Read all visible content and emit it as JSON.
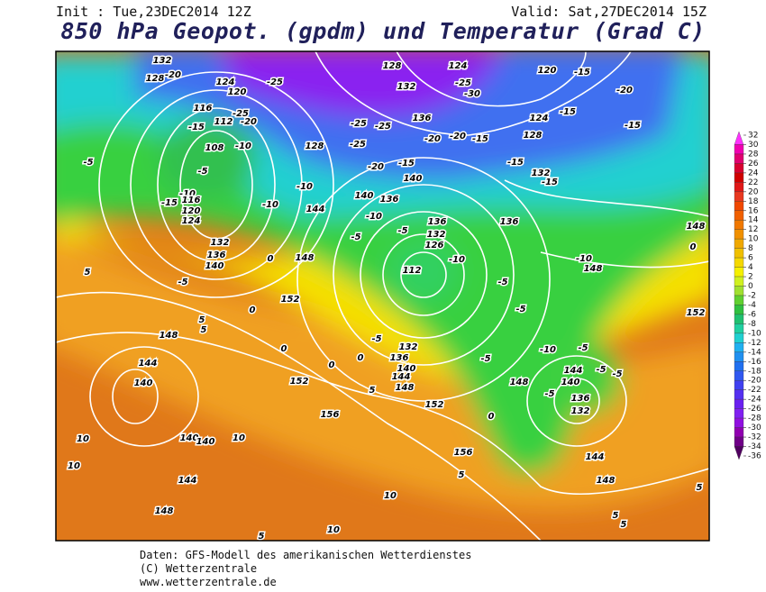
{
  "header": {
    "init": "Init : Tue,23DEC2014 12Z",
    "valid": "Valid: Sat,27DEC2014 15Z",
    "title": "850 hPa Geopot. (gpdm) und Temperatur (Grad C)"
  },
  "map_labels": [
    "132",
    "128",
    "-20",
    "124",
    "120",
    "-25",
    "116",
    "-25",
    "112",
    "-20",
    "-15",
    "108",
    "-10",
    "-5",
    "-5",
    "-15",
    "-10",
    "116",
    "120",
    "124",
    "132",
    "136",
    "140",
    "-5",
    "0",
    "5",
    "148",
    "152",
    "0",
    "0",
    "5",
    "5",
    "148",
    "144",
    "140",
    "152",
    "156",
    "140",
    "140",
    "10",
    "10",
    "10",
    "144",
    "148",
    "10",
    "5",
    "10",
    "128",
    "124",
    "132",
    "-25",
    "-30",
    "-25",
    "-25",
    "136",
    "-20",
    "-20",
    "-15",
    "128",
    "-25",
    "-20",
    "-15",
    "140",
    "140",
    "136",
    "144",
    "-10",
    "-10",
    "-10",
    "-5",
    "-5",
    "136",
    "132",
    "126",
    "112",
    "-10",
    "-5",
    "132",
    "136",
    "140",
    "144",
    "148",
    "152",
    "5",
    "0",
    "0",
    "156",
    "5",
    "-5",
    "-5",
    "-5",
    "0",
    "120",
    "-15",
    "-20",
    "124",
    "-15",
    "-15",
    "128",
    "-15",
    "132",
    "-15",
    "136",
    "-10",
    "148",
    "148",
    "0",
    "152",
    "-10",
    "-5",
    "148",
    "144",
    "140",
    "136",
    "132",
    "-5",
    "144",
    "148",
    "5",
    "5",
    "5",
    "-5",
    "-5"
  ],
  "legend": {
    "ticks": [
      32,
      30,
      28,
      26,
      24,
      22,
      20,
      18,
      16,
      14,
      12,
      10,
      8,
      6,
      4,
      2,
      0,
      -2,
      -4,
      -6,
      -8,
      -10,
      -12,
      -14,
      -16,
      -18,
      -20,
      -22,
      -24,
      -26,
      -28,
      -30,
      -32,
      -34,
      -36
    ],
    "colors": [
      "#ff30ff",
      "#f000b0",
      "#e00070",
      "#d80030",
      "#d00000",
      "#e01818",
      "#e83820",
      "#f04800",
      "#f06000",
      "#f07800",
      "#f09000",
      "#f0a800",
      "#f0c000",
      "#f5d800",
      "#f5f000",
      "#d0f020",
      "#a0e030",
      "#60d030",
      "#30c040",
      "#20c070",
      "#20d0a0",
      "#20d0d0",
      "#20b0f0",
      "#2090f0",
      "#2070f0",
      "#3058f0",
      "#4040f0",
      "#5530f0",
      "#6a20f0",
      "#8020f0",
      "#9010e0",
      "#9000b0",
      "#700088",
      "#500060"
    ]
  },
  "footer": [
    "Daten: GFS-Modell des amerikanischen Wetterdienstes",
    "(C) Wetterzentrale",
    "www.wetterzentrale.de"
  ]
}
